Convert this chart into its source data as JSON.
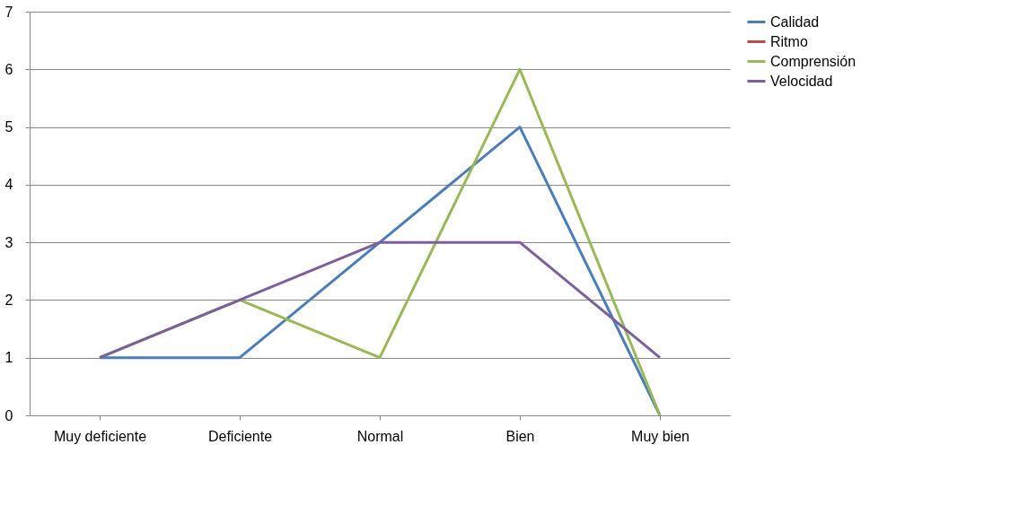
{
  "chart_data": {
    "type": "line",
    "categories": [
      "Muy deficiente",
      "Deficiente",
      "Normal",
      "Bien",
      "Muy bien"
    ],
    "series": [
      {
        "name": "Calidad",
        "color": "#4a7ebb",
        "values": [
          1,
          1,
          3,
          5,
          0
        ]
      },
      {
        "name": "Ritmo",
        "color": "#be4b48",
        "values": [
          null,
          null,
          null,
          null,
          null
        ]
      },
      {
        "name": "Comprensión",
        "color": "#98b954",
        "values": [
          1,
          2,
          1,
          6,
          0
        ]
      },
      {
        "name": "Velocidad",
        "color": "#7d5fa0",
        "values": [
          1,
          2,
          3,
          3,
          1
        ]
      }
    ],
    "ylim": [
      0,
      7
    ],
    "yticks": [
      0,
      1,
      2,
      3,
      4,
      5,
      6,
      7
    ],
    "grid": "y",
    "legend": "right",
    "marker": "none",
    "line_style": "solid"
  }
}
